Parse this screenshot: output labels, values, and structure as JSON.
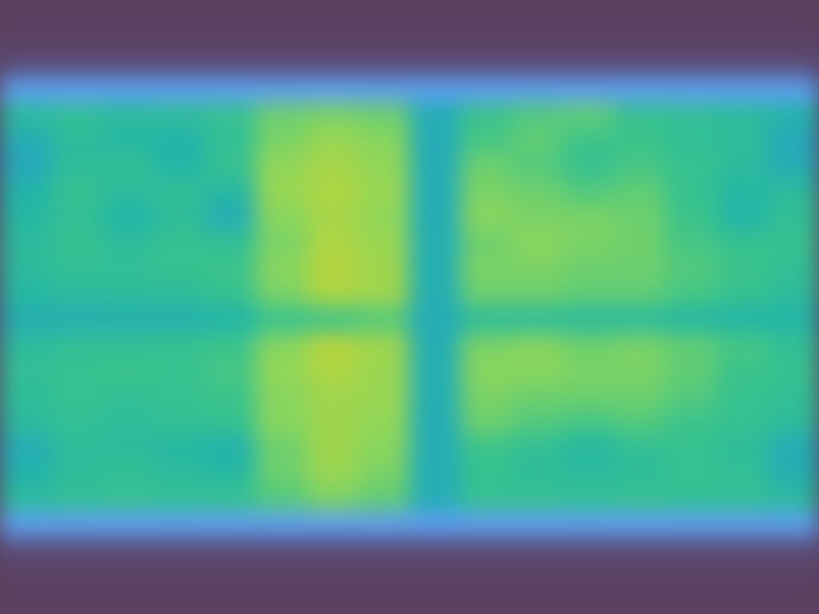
{
  "chart_data": {
    "type": "heatmap",
    "tick_labels": false,
    "zlim": [
      0,
      1
    ],
    "cells": [
      [
        0,
        0,
        0,
        0,
        0,
        0,
        0,
        0,
        0,
        0,
        0,
        0,
        0,
        0,
        0,
        0
      ],
      [
        0,
        0,
        0,
        0,
        0,
        0,
        0,
        0,
        0,
        0,
        0,
        0,
        0,
        0,
        0,
        0
      ],
      [
        0.04,
        0.04,
        0.04,
        0.04,
        0.04,
        0.04,
        0.04,
        0.04,
        0.04,
        0.04,
        0.04,
        0.04,
        0.04,
        0.04,
        0.04,
        0.04
      ],
      [
        0.28,
        0.28,
        0.28,
        0.28,
        0.28,
        0.28,
        0.28,
        0.28,
        0.28,
        0.28,
        0.28,
        0.28,
        0.28,
        0.28,
        0.28,
        0.28
      ],
      [
        0.55,
        0.58,
        0.55,
        0.57,
        0.6,
        0.7,
        0.72,
        0.7,
        0.45,
        0.62,
        0.66,
        0.68,
        0.6,
        0.58,
        0.55,
        0.5
      ],
      [
        0.45,
        0.55,
        0.52,
        0.48,
        0.58,
        0.72,
        0.78,
        0.74,
        0.44,
        0.64,
        0.68,
        0.62,
        0.62,
        0.58,
        0.56,
        0.42
      ],
      [
        0.42,
        0.56,
        0.58,
        0.5,
        0.6,
        0.76,
        0.82,
        0.76,
        0.45,
        0.7,
        0.66,
        0.6,
        0.64,
        0.6,
        0.55,
        0.45
      ],
      [
        0.5,
        0.6,
        0.55,
        0.58,
        0.52,
        0.78,
        0.84,
        0.78,
        0.45,
        0.72,
        0.7,
        0.66,
        0.68,
        0.6,
        0.52,
        0.55
      ],
      [
        0.52,
        0.58,
        0.5,
        0.56,
        0.45,
        0.74,
        0.82,
        0.76,
        0.45,
        0.74,
        0.72,
        0.72,
        0.7,
        0.62,
        0.5,
        0.58
      ],
      [
        0.55,
        0.6,
        0.56,
        0.6,
        0.58,
        0.72,
        0.84,
        0.78,
        0.46,
        0.7,
        0.74,
        0.72,
        0.7,
        0.64,
        0.6,
        0.6
      ],
      [
        0.55,
        0.58,
        0.58,
        0.6,
        0.62,
        0.74,
        0.86,
        0.8,
        0.46,
        0.72,
        0.72,
        0.7,
        0.7,
        0.66,
        0.62,
        0.58
      ],
      [
        0.52,
        0.55,
        0.55,
        0.56,
        0.6,
        0.72,
        0.84,
        0.8,
        0.46,
        0.7,
        0.7,
        0.68,
        0.68,
        0.64,
        0.6,
        0.56
      ],
      [
        0.46,
        0.46,
        0.47,
        0.47,
        0.5,
        0.6,
        0.62,
        0.66,
        0.44,
        0.55,
        0.55,
        0.54,
        0.54,
        0.52,
        0.5,
        0.5
      ],
      [
        0.55,
        0.58,
        0.58,
        0.6,
        0.62,
        0.74,
        0.88,
        0.8,
        0.46,
        0.72,
        0.74,
        0.7,
        0.72,
        0.68,
        0.64,
        0.58
      ],
      [
        0.58,
        0.6,
        0.62,
        0.6,
        0.64,
        0.76,
        0.84,
        0.78,
        0.46,
        0.74,
        0.74,
        0.72,
        0.72,
        0.68,
        0.62,
        0.6
      ],
      [
        0.56,
        0.6,
        0.58,
        0.6,
        0.62,
        0.74,
        0.8,
        0.78,
        0.46,
        0.72,
        0.7,
        0.7,
        0.7,
        0.66,
        0.6,
        0.58
      ],
      [
        0.55,
        0.58,
        0.56,
        0.58,
        0.6,
        0.74,
        0.8,
        0.76,
        0.45,
        0.7,
        0.66,
        0.64,
        0.66,
        0.62,
        0.6,
        0.56
      ],
      [
        0.45,
        0.56,
        0.55,
        0.52,
        0.48,
        0.7,
        0.8,
        0.74,
        0.45,
        0.62,
        0.58,
        0.52,
        0.58,
        0.6,
        0.56,
        0.45
      ],
      [
        0.48,
        0.56,
        0.58,
        0.55,
        0.52,
        0.7,
        0.78,
        0.72,
        0.45,
        0.6,
        0.56,
        0.55,
        0.56,
        0.6,
        0.58,
        0.46
      ],
      [
        0.55,
        0.58,
        0.6,
        0.58,
        0.6,
        0.66,
        0.72,
        0.68,
        0.45,
        0.6,
        0.6,
        0.58,
        0.6,
        0.58,
        0.58,
        0.55
      ],
      [
        0.28,
        0.28,
        0.28,
        0.28,
        0.28,
        0.28,
        0.28,
        0.28,
        0.28,
        0.28,
        0.28,
        0.28,
        0.28,
        0.28,
        0.28,
        0.28
      ],
      [
        0.04,
        0.04,
        0.04,
        0.04,
        0.04,
        0.04,
        0.04,
        0.04,
        0.04,
        0.04,
        0.04,
        0.04,
        0.04,
        0.04,
        0.04,
        0.04
      ],
      [
        0,
        0,
        0,
        0,
        0,
        0,
        0,
        0,
        0,
        0,
        0,
        0,
        0,
        0,
        0,
        0
      ],
      [
        0,
        0,
        0,
        0,
        0,
        0,
        0,
        0,
        0,
        0,
        0,
        0,
        0,
        0,
        0,
        0
      ]
    ]
  }
}
